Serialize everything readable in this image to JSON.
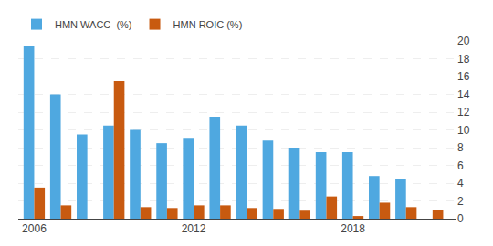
{
  "chart_data": {
    "type": "bar",
    "x": [
      2006,
      2007,
      2008,
      2009,
      2010,
      2011,
      2012,
      2013,
      2014,
      2015,
      2016,
      2017,
      2018,
      2019,
      2020,
      2021
    ],
    "series": [
      {
        "name": "HMN WACC  (%)",
        "color": "#4FA8E0",
        "values": [
          19.5,
          14.0,
          9.5,
          10.5,
          10.0,
          8.5,
          9.0,
          11.5,
          10.5,
          8.8,
          8.0,
          7.5,
          7.5,
          4.8,
          4.5,
          0
        ]
      },
      {
        "name": "HMN ROIC (%)",
        "color": "#C85A10",
        "values": [
          3.5,
          1.5,
          0.0,
          15.5,
          1.3,
          1.2,
          1.5,
          1.5,
          1.2,
          1.1,
          0.9,
          2.5,
          0.3,
          1.8,
          1.3,
          1.0
        ]
      }
    ],
    "xlim": [
      2005.4,
      2021.9
    ],
    "xticks": [
      2006,
      2012,
      2018
    ],
    "ylim": [
      0,
      20
    ],
    "yticks": [
      0,
      2,
      4,
      6,
      8,
      10,
      12,
      14,
      16,
      18,
      20
    ],
    "grid": true,
    "legend": "upper left"
  }
}
